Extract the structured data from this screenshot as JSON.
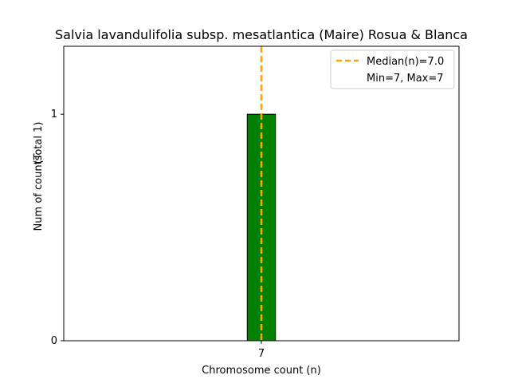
{
  "chart_data": {
    "type": "bar",
    "title": "Salvia lavandulifolia subsp. mesatlantica (Maire) Rosua & Blanca",
    "xlabel": "Chromosome count (n)",
    "ylabel": "Num of counts",
    "ylabel_total": "(Total 1)",
    "x": [
      7
    ],
    "values": [
      1
    ],
    "bar_width": 0.7,
    "xlim": [
      2.1,
      11.9
    ],
    "ylim": [
      0,
      1.3
    ],
    "xticks": [
      7
    ],
    "yticks": [
      0,
      1
    ],
    "baseline_range": [
      2.1,
      9.45
    ],
    "bar_color": "#008000",
    "median": 7.0,
    "median_color": "#FFA500",
    "legend": {
      "placement": "top-right",
      "median_label": "Median(n)=7.0",
      "minmax_label": "Min=7, Max=7"
    },
    "grid": false
  }
}
